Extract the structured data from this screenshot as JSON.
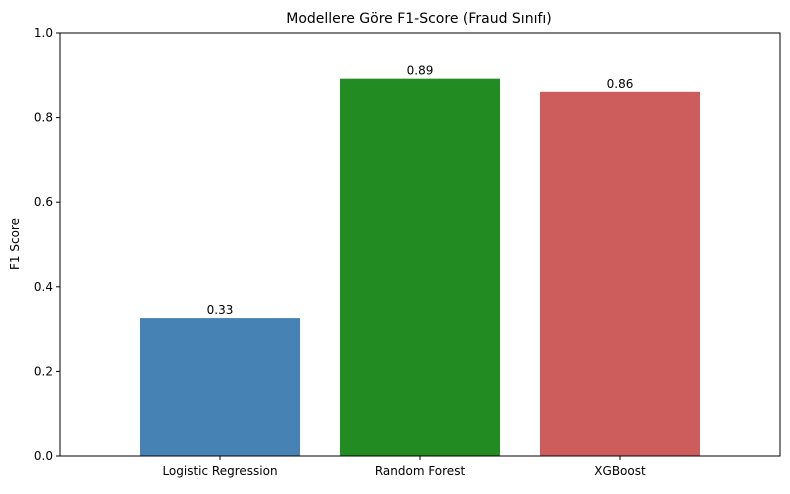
{
  "chart_data": {
    "type": "bar",
    "title": "Modellere Göre F1-Score (Fraud Sınıfı)",
    "xlabel": "",
    "ylabel": "F1 Score",
    "categories": [
      "Logistic Regression",
      "Random Forest",
      "XGBoost"
    ],
    "values": [
      0.326,
      0.892,
      0.861
    ],
    "value_labels": [
      "0.33",
      "0.89",
      "0.86"
    ],
    "colors": [
      "#4682b4",
      "#228b22",
      "#cd5c5c"
    ],
    "ylim": [
      0,
      1
    ],
    "yticks": [
      0.0,
      0.2,
      0.4,
      0.6,
      0.8,
      1.0
    ],
    "ytick_labels": [
      "0.0",
      "0.2",
      "0.4",
      "0.6",
      "0.8",
      "1.0"
    ],
    "grid": false,
    "legend": false
  }
}
